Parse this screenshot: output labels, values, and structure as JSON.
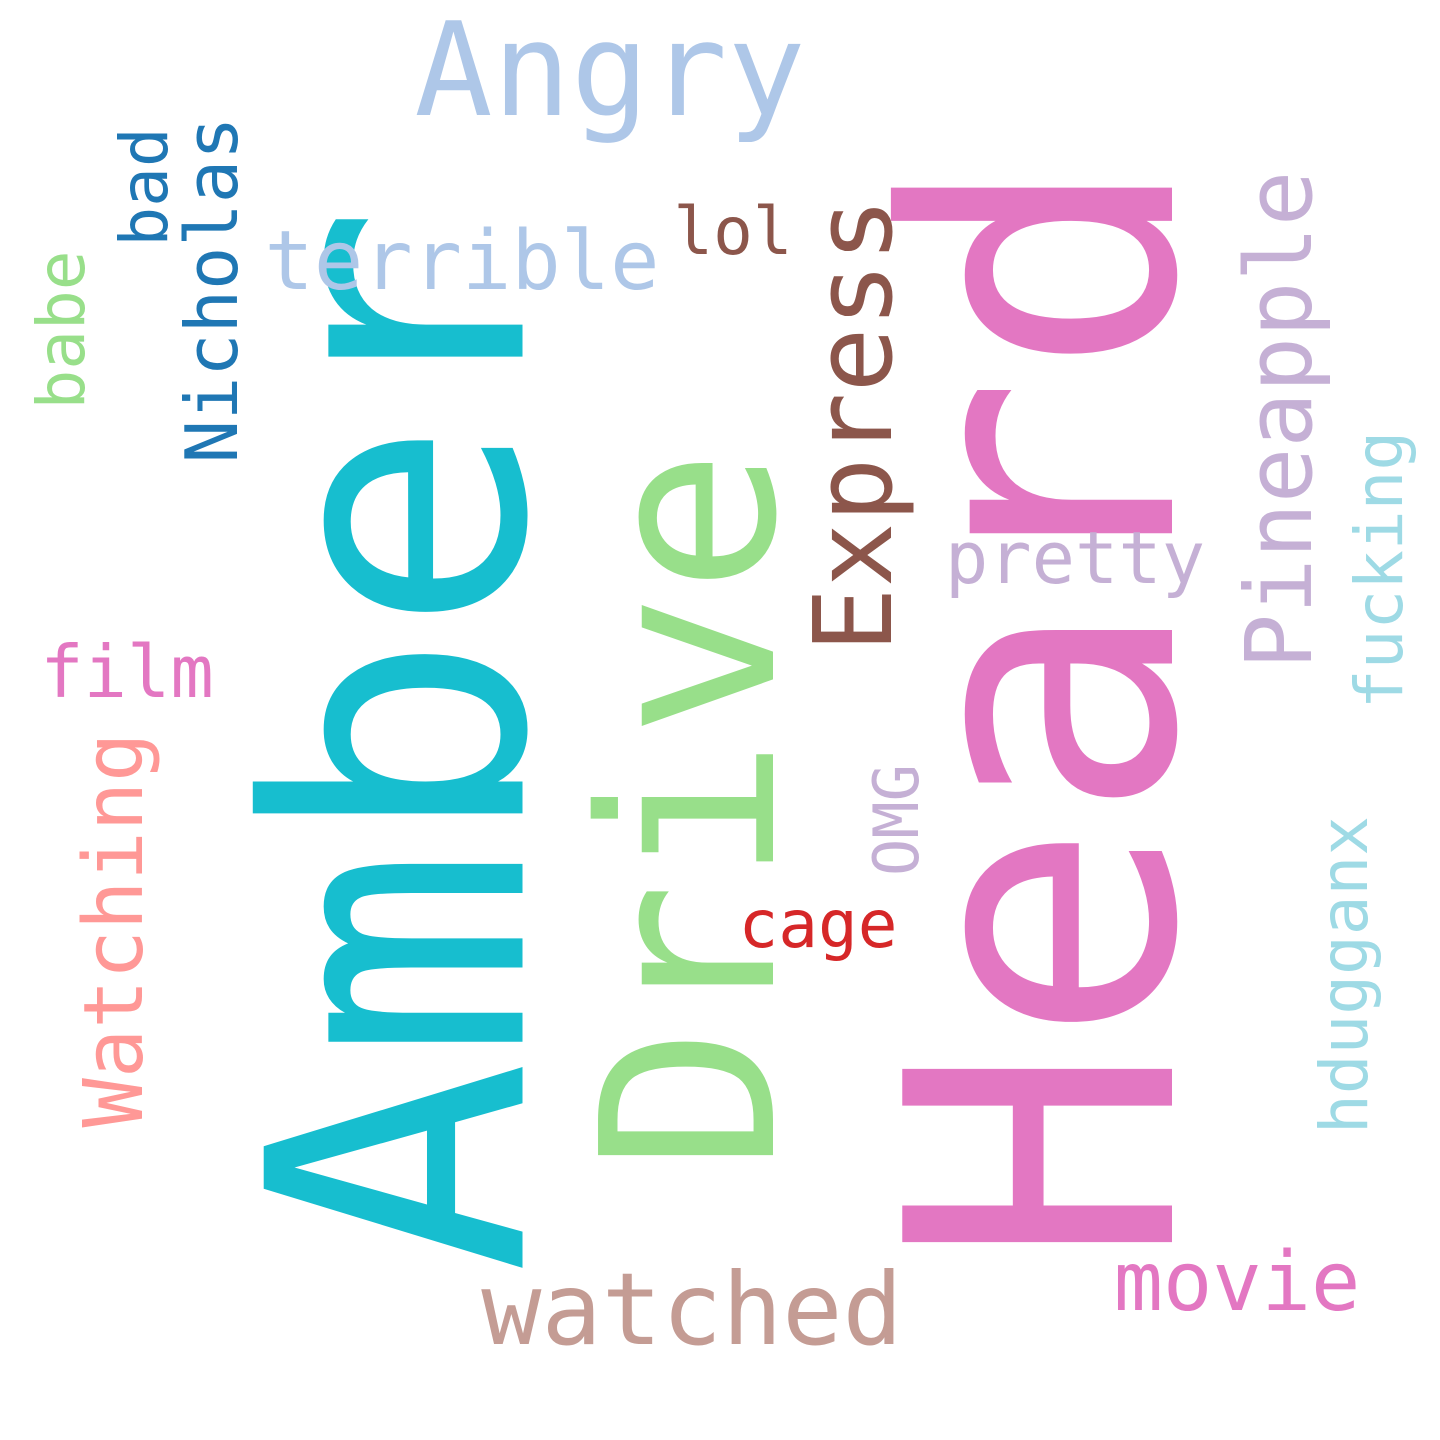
{
  "words": [
    {
      "key": "amber",
      "text": "Amber",
      "color": "#17becf",
      "orientation": "vertical"
    },
    {
      "key": "heard",
      "text": "Heard",
      "color": "#e377c2",
      "orientation": "vertical"
    },
    {
      "key": "drive",
      "text": "Drive",
      "color": "#98df8a",
      "orientation": "vertical"
    },
    {
      "key": "angry",
      "text": "Angry",
      "color": "#aec7e8",
      "orientation": "horizontal"
    },
    {
      "key": "express",
      "text": "Express",
      "color": "#8c564b",
      "orientation": "vertical"
    },
    {
      "key": "pineapple",
      "text": "Pineapple",
      "color": "#c5b0d5",
      "orientation": "vertical"
    },
    {
      "key": "watched",
      "text": "watched",
      "color": "#c49c94",
      "orientation": "horizontal"
    },
    {
      "key": "movie",
      "text": "movie",
      "color": "#e377c2",
      "orientation": "horizontal"
    },
    {
      "key": "watching",
      "text": "Watching",
      "color": "#ff9896",
      "orientation": "vertical"
    },
    {
      "key": "terrible",
      "text": "terrible",
      "color": "#aec7e8",
      "orientation": "horizontal"
    },
    {
      "key": "nicholas",
      "text": "Nicholas",
      "color": "#1f77b4",
      "orientation": "vertical"
    },
    {
      "key": "pretty",
      "text": "pretty",
      "color": "#c5b0d5",
      "orientation": "horizontal"
    },
    {
      "key": "film",
      "text": "film",
      "color": "#e377c2",
      "orientation": "horizontal"
    },
    {
      "key": "fucking",
      "text": "fucking",
      "color": "#9edae5",
      "orientation": "vertical"
    },
    {
      "key": "hduggan",
      "text": "hdugganx",
      "color": "#9edae5",
      "orientation": "vertical"
    },
    {
      "key": "babe",
      "text": "babe",
      "color": "#98df8a",
      "orientation": "vertical"
    },
    {
      "key": "bad",
      "text": "bad",
      "color": "#1f77b4",
      "orientation": "vertical"
    },
    {
      "key": "lol",
      "text": "lol",
      "color": "#8c564b",
      "orientation": "horizontal"
    },
    {
      "key": "omg",
      "text": "OMG",
      "color": "#c5b0d5",
      "orientation": "vertical"
    },
    {
      "key": "cage",
      "text": "cage",
      "color": "#d62728",
      "orientation": "horizontal"
    }
  ]
}
